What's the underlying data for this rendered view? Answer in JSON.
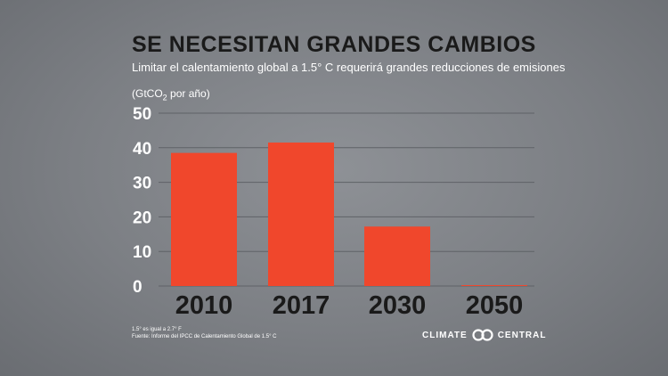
{
  "colors": {
    "bar": "#f0472c",
    "bar_edge": "#e8382a",
    "gridline": "#5f6267",
    "axis_text": "#ffffff",
    "year_text": "#1a1a1a"
  },
  "chart_data": {
    "type": "bar",
    "title": "SE NECESITAN GRANDES CAMBIOS",
    "subtitle": "Limitar el calentamiento global a 1.5° C requerirá grandes reducciones de emisiones",
    "ylabel_prefix": "(GtCO",
    "ylabel_sub": "2",
    "ylabel_suffix": " por año)",
    "categories": [
      "2010",
      "2017",
      "2030",
      "2050"
    ],
    "values": [
      38.5,
      41.5,
      17.2,
      0
    ],
    "ylim": [
      0,
      50
    ],
    "yticks": [
      "0",
      "10",
      "20",
      "30",
      "40",
      "50"
    ],
    "grid": true
  },
  "footer": {
    "note_line1": "1.5° es igual a 2.7° F",
    "note_line2": "Fuente: Informe del IPCC de Calentamiento Global de 1.5° C",
    "logo_left": "CLIMATE",
    "logo_right": "CENTRAL",
    "logo_icon": "climate-central-rings-icon"
  }
}
